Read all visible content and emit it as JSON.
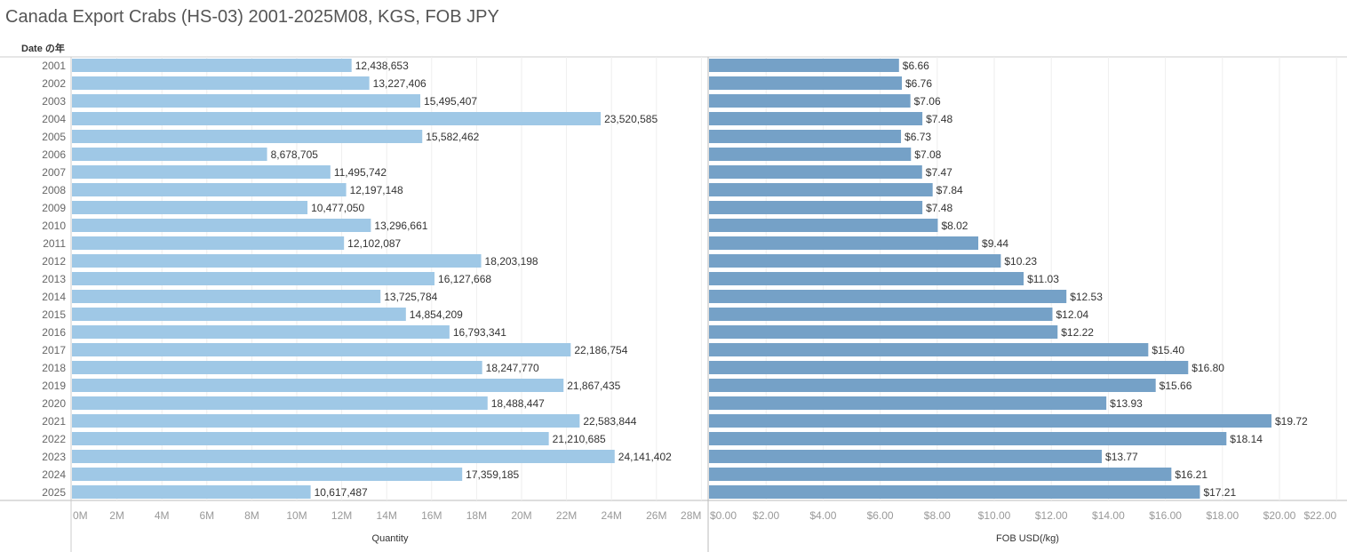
{
  "title": "Canada Export Crabs (HS-03) 2001-2025M08, KGS, FOB JPY",
  "row_header": "Date の年",
  "chart_data": [
    {
      "type": "bar",
      "orientation": "horizontal",
      "xlabel": "Quantity",
      "xlim": [
        0,
        28000000
      ],
      "ticks": [
        "0M",
        "2M",
        "4M",
        "6M",
        "8M",
        "10M",
        "12M",
        "14M",
        "16M",
        "18M",
        "20M",
        "22M",
        "24M",
        "26M",
        "28M"
      ],
      "color": "#9fc8e6",
      "grid": true,
      "categories": [
        "2001",
        "2002",
        "2003",
        "2004",
        "2005",
        "2006",
        "2007",
        "2008",
        "2009",
        "2010",
        "2011",
        "2012",
        "2013",
        "2014",
        "2015",
        "2016",
        "2017",
        "2018",
        "2019",
        "2020",
        "2021",
        "2022",
        "2023",
        "2024",
        "2025"
      ],
      "values": [
        12438653,
        13227406,
        15495407,
        23520585,
        15582462,
        8678705,
        11495742,
        12197148,
        10477050,
        13296661,
        12102087,
        18203198,
        16127668,
        13725784,
        14854209,
        16793341,
        22186754,
        18247770,
        21867435,
        18488447,
        22583844,
        21210685,
        24141402,
        17359185,
        10617487
      ],
      "labels": [
        "12,438,653",
        "13,227,406",
        "15,495,407",
        "23,520,585",
        "15,582,462",
        "8,678,705",
        "11,495,742",
        "12,197,148",
        "10,477,050",
        "13,296,661",
        "12,102,087",
        "18,203,198",
        "16,127,668",
        "13,725,784",
        "14,854,209",
        "16,793,341",
        "22,186,754",
        "18,247,770",
        "21,867,435",
        "18,488,447",
        "22,583,844",
        "21,210,685",
        "24,141,402",
        "17,359,185",
        "10,617,487"
      ]
    },
    {
      "type": "bar",
      "orientation": "horizontal",
      "xlabel": "FOB USD(/kg)",
      "xlim": [
        0,
        22
      ],
      "ticks": [
        "$0.00",
        "$2.00",
        "$4.00",
        "$6.00",
        "$8.00",
        "$10.00",
        "$12.00",
        "$14.00",
        "$16.00",
        "$18.00",
        "$20.00",
        "$22.00"
      ],
      "color": "#75a1c7",
      "grid": true,
      "categories": [
        "2001",
        "2002",
        "2003",
        "2004",
        "2005",
        "2006",
        "2007",
        "2008",
        "2009",
        "2010",
        "2011",
        "2012",
        "2013",
        "2014",
        "2015",
        "2016",
        "2017",
        "2018",
        "2019",
        "2020",
        "2021",
        "2022",
        "2023",
        "2024",
        "2025"
      ],
      "values": [
        6.66,
        6.76,
        7.06,
        7.48,
        6.73,
        7.08,
        7.47,
        7.84,
        7.48,
        8.02,
        9.44,
        10.23,
        11.03,
        12.53,
        12.04,
        12.22,
        15.4,
        16.8,
        15.66,
        13.93,
        19.72,
        18.14,
        13.77,
        16.21,
        17.21
      ],
      "labels": [
        "$6.66",
        "$6.76",
        "$7.06",
        "$7.48",
        "$6.73",
        "$7.08",
        "$7.47",
        "$7.84",
        "$7.48",
        "$8.02",
        "$9.44",
        "$10.23",
        "$11.03",
        "$12.53",
        "$12.04",
        "$12.22",
        "$15.40",
        "$16.80",
        "$15.66",
        "$13.93",
        "$19.72",
        "$18.14",
        "$13.77",
        "$16.21",
        "$17.21"
      ]
    }
  ]
}
